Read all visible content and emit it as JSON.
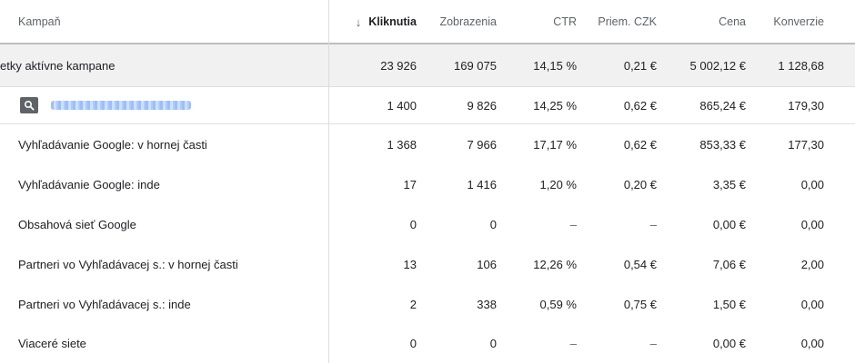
{
  "header": {
    "campaign": "Kampaň",
    "sort_arrow": "↓",
    "clicks": "Kliknutia",
    "impressions": "Zobrazenia",
    "ctr": "CTR",
    "avg_cpc": "Priem. CZK",
    "cost": "Cena",
    "conversions": "Konverzie"
  },
  "total_row": {
    "label": "etky aktívne kampane",
    "clicks": "23 926",
    "impressions": "169 075",
    "ctr": "14,15 %",
    "avg_cpc": "0,21 €",
    "cost": "5 002,12 €",
    "conversions": "1 128,68"
  },
  "campaign_row": {
    "icon": "search-icon",
    "clicks": "1 400",
    "impressions": "9 826",
    "ctr": "14,25 %",
    "avg_cpc": "0,62 €",
    "cost": "865,24 €",
    "conversions": "179,30"
  },
  "segments": [
    {
      "label": "Vyhľadávanie Google: v hornej časti",
      "clicks": "1 368",
      "impressions": "7 966",
      "ctr": "17,17 %",
      "avg_cpc": "0,62 €",
      "cost": "853,33 €",
      "conversions": "177,30"
    },
    {
      "label": "Vyhľadávanie Google: inde",
      "clicks": "17",
      "impressions": "1 416",
      "ctr": "1,20 %",
      "avg_cpc": "0,20 €",
      "cost": "3,35 €",
      "conversions": "0,00"
    },
    {
      "label": "Obsahová sieť Google",
      "clicks": "0",
      "impressions": "0",
      "ctr": "–",
      "avg_cpc": "–",
      "cost": "0,00 €",
      "conversions": "0,00"
    },
    {
      "label": "Partneri vo Vyhľadávacej s.: v hornej časti",
      "clicks": "13",
      "impressions": "106",
      "ctr": "12,26 %",
      "avg_cpc": "0,54 €",
      "cost": "7,06 €",
      "conversions": "2,00"
    },
    {
      "label": "Partneri vo Vyhľadávacej s.: inde",
      "clicks": "2",
      "impressions": "338",
      "ctr": "0,59 %",
      "avg_cpc": "0,75 €",
      "cost": "1,50 €",
      "conversions": "0,00"
    },
    {
      "label": "Viaceré siete",
      "clicks": "0",
      "impressions": "0",
      "ctr": "–",
      "avg_cpc": "–",
      "cost": "0,00 €",
      "conversions": "0,00"
    }
  ]
}
